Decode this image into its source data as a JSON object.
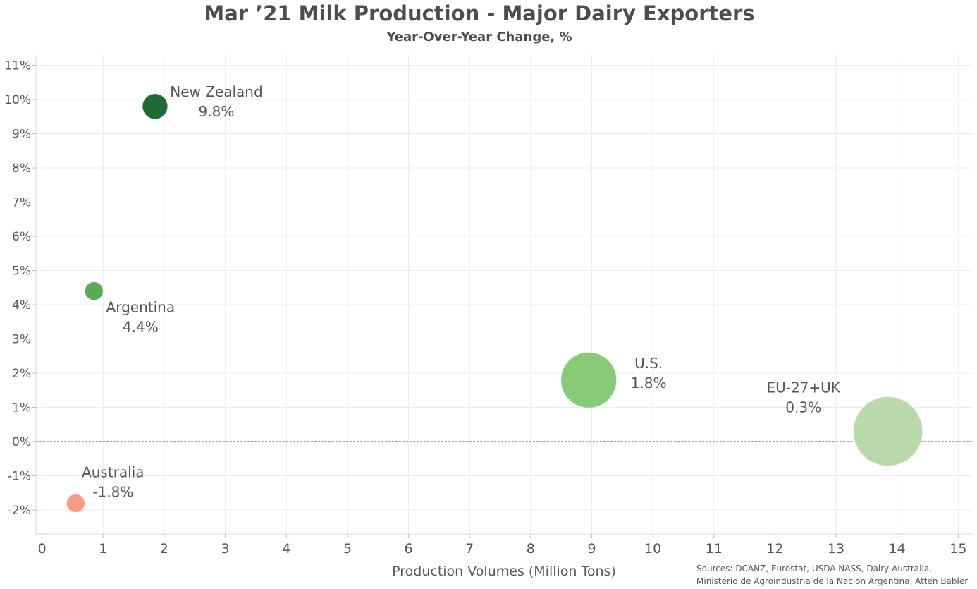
{
  "chart_data": {
    "type": "scatter",
    "title": "Mar ’21 Milk Production - Major Dairy Exporters",
    "subtitle": "Year-Over-Year Change, %",
    "xlabel": "Production Volumes (Million Tons)",
    "ylabel": "",
    "xlim": [
      -0.1,
      15.25
    ],
    "ylim": [
      -2.7,
      11.3
    ],
    "x_ticks": [
      "0",
      "1",
      "2",
      "3",
      "4",
      "5",
      "6",
      "7",
      "8",
      "9",
      "10",
      "11",
      "12",
      "13",
      "14",
      "15"
    ],
    "y_ticks": [
      "-2%",
      "-1%",
      "0%",
      "1%",
      "2%",
      "3%",
      "4%",
      "5%",
      "6%",
      "7%",
      "8%",
      "9%",
      "10%",
      "11%"
    ],
    "grid": true,
    "reference_line": {
      "y": 0,
      "style": "dotted"
    },
    "points": [
      {
        "name": "New Zealand",
        "x": 1.85,
        "y": 9.8,
        "label": "9.8%",
        "color": "#1e6b37"
      },
      {
        "name": "Argentina",
        "x": 0.85,
        "y": 4.4,
        "label": "4.4%",
        "color": "#5aaa4f"
      },
      {
        "name": "U.S.",
        "x": 8.95,
        "y": 1.8,
        "label": "1.8%",
        "color": "#86cc77"
      },
      {
        "name": "EU-27+UK",
        "x": 13.85,
        "y": 0.3,
        "label": "0.3%",
        "color": "#b9d8ab"
      },
      {
        "name": "Australia",
        "x": 0.55,
        "y": -1.8,
        "label": "-1.8%",
        "color": "#fb9a86"
      }
    ]
  },
  "source_lines": [
    "Sources: DCANZ, Eurostat, USDA NASS, Dairy Australia,",
    "Ministerio de Agroindustria de la Nacion Argentina, Atten Babler"
  ]
}
